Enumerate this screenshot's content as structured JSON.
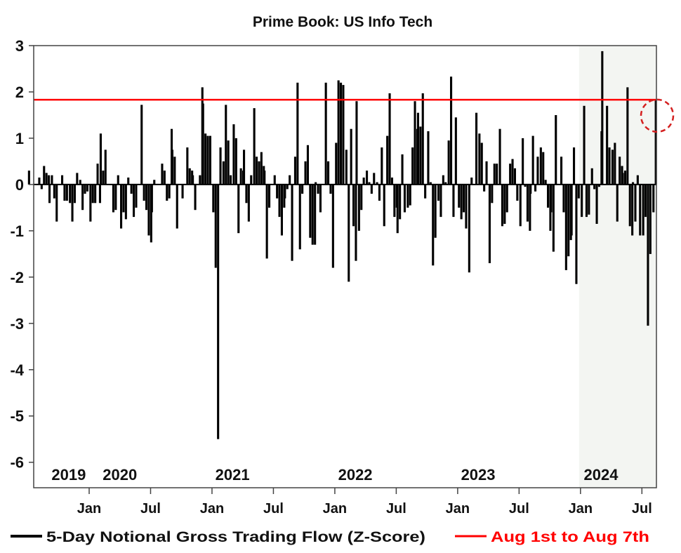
{
  "chart_data": {
    "type": "bar",
    "title": "Prime Book: US Info Tech",
    "xlabel": "",
    "ylabel": "",
    "ylim": [
      -6.55,
      3
    ],
    "yticks": [
      "3",
      "2",
      "1",
      "0",
      "-1",
      "-2",
      "-3",
      "-4",
      "-5",
      "-6"
    ],
    "ytick_values": [
      3,
      2,
      1,
      0,
      -1,
      -2,
      -3,
      -4,
      -5,
      -6
    ],
    "xtick_labels": [
      {
        "date": "2020-01",
        "label": "Jan"
      },
      {
        "date": "2020-07",
        "label": "Jul"
      },
      {
        "date": "2021-01",
        "label": "Jan"
      },
      {
        "date": "2021-07",
        "label": "Jul"
      },
      {
        "date": "2022-01",
        "label": "Jan"
      },
      {
        "date": "2022-07",
        "label": "Jul"
      },
      {
        "date": "2023-01",
        "label": "Jan"
      },
      {
        "date": "2023-07",
        "label": "Jul"
      },
      {
        "date": "2024-01",
        "label": "Jan"
      },
      {
        "date": "2024-07",
        "label": "Jul"
      }
    ],
    "year_labels": [
      {
        "date": "2019-11",
        "label": "2019"
      },
      {
        "date": "2020-04",
        "label": "2020"
      },
      {
        "date": "2021-03",
        "label": "2021"
      },
      {
        "date": "2022-03",
        "label": "2022"
      },
      {
        "date": "2023-03",
        "label": "2023"
      },
      {
        "date": "2024-03",
        "label": "2024"
      }
    ],
    "grid": false,
    "legend_placement": "bottom",
    "shaded_period": {
      "start": "2024-01",
      "end": "2024-08",
      "color": "#f3f5f2"
    },
    "reference_line": {
      "value": 1.83,
      "color": "#ff0000",
      "name": "Aug 1st to Aug 7th"
    },
    "highlight_circle": {
      "date": "2024-08",
      "value": 1.82,
      "color": "#d42020"
    },
    "series": [
      {
        "name": "5-Day Notional Gross Trading Flow (Z-Score)",
        "color": "#000000",
        "weekly_values_by_month": {
          "2019-07": [
            0.3
          ],
          "2019-08": [
            0.15,
            -0.1,
            0.4,
            0.25,
            0.2
          ],
          "2019-09": [
            -0.4,
            0.2,
            -0.3,
            -0.8
          ],
          "2019-10": [
            0,
            0.2,
            -0.35,
            -0.35
          ],
          "2019-11": [
            -0.4,
            -0.8,
            -0.4,
            0.25
          ],
          "2019-12": [
            0.1,
            -0.55,
            -0.2,
            -0.15
          ],
          "2020-01": [
            -0.8,
            -0.4,
            -0.4,
            0.45,
            -0.4
          ],
          "2020-02": [
            1.1,
            0.3,
            0.75
          ],
          "2020-03": [
            0,
            -0.6,
            -0.55,
            0.2
          ],
          "2020-04": [
            -0.95,
            -0.6,
            -0.75,
            0.15
          ],
          "2020-05": [
            -0.2,
            -0.7,
            -0.5
          ],
          "2020-06": [
            1.72,
            -0.35,
            -0.55,
            -1.1,
            -1.25
          ],
          "2020-07": [
            -0.6,
            0.1
          ],
          "2020-08": [
            0.45,
            0.3,
            -0.35,
            -0.3,
            1.2
          ],
          "2020-09": [
            0.75,
            0.6,
            -0.95
          ],
          "2020-10": [
            -0.3,
            0,
            0.8,
            0.35,
            0.3
          ],
          "2020-11": [
            0.2,
            -0.55,
            0,
            0.2,
            2.1
          ],
          "2020-12": [
            1.75,
            1.1,
            1.05,
            1.05
          ],
          "2021-01": [
            -0.6,
            -1.8,
            -5.5,
            0.8
          ],
          "2021-02": [
            0.5,
            1.72,
            0.95,
            0.2
          ],
          "2021-03": [
            1.3,
            1.0,
            -1.05,
            0.35,
            0.3
          ],
          "2021-04": [
            0.75,
            -0.4,
            -0.8,
            0.2
          ],
          "2021-05": [
            1.65,
            0.6,
            0.5,
            0.7,
            0.4
          ],
          "2021-06": [
            0.3,
            -1.6,
            -0.5
          ],
          "2021-07": [
            0.2,
            -0.3,
            -0.7,
            -1.1,
            -0.5
          ],
          "2021-08": [
            -0.3,
            -0.1,
            0.2,
            -1.65
          ],
          "2021-09": [
            0.6,
            2.2,
            -1.4,
            -0.2
          ],
          "2021-10": [
            0.5,
            0.85,
            -1.15,
            -1.3,
            -1.3
          ],
          "2021-11": [
            0.05,
            -0.2,
            -0.6
          ],
          "2021-12": [
            2.2,
            0.5,
            -0.2,
            -1.8
          ],
          "2022-01": [
            0.9,
            2.25,
            2.2,
            2.15
          ],
          "2022-02": [
            0.75,
            -2.1,
            1.2,
            -0.9,
            -1.65
          ],
          "2022-03": [
            1.8,
            -1.0,
            -0.55,
            0.15
          ],
          "2022-04": [
            0.3,
            0.05,
            -0.2,
            0.25
          ],
          "2022-05": [
            0.05,
            -0.35,
            0.8,
            -0.9
          ],
          "2022-06": [
            1.05,
            1.97,
            0.15,
            -0.7,
            -0.5
          ],
          "2022-07": [
            -1.05,
            -0.75,
            0.65,
            -0.6
          ],
          "2022-08": [
            -0.5,
            -0.45,
            0.8,
            1.8,
            1.2
          ],
          "2022-09": [
            1.55,
            1.25,
            1.97,
            -0.3
          ],
          "2022-10": [
            1.15,
            0.05,
            -1.75,
            -1.15
          ],
          "2022-11": [
            -0.35,
            -0.7,
            0.2,
            0.05
          ],
          "2022-12": [
            0.95,
            2.33,
            -0.7,
            1.45
          ],
          "2023-01": [
            -0.5,
            -0.75,
            -0.6,
            -0.95
          ],
          "2023-02": [
            -1.9,
            0.15,
            0,
            1.55
          ],
          "2023-03": [
            1.1,
            0.9,
            -0.15,
            0.5
          ],
          "2023-04": [
            -1.7,
            -0.4,
            0.45,
            0.45
          ],
          "2023-05": [
            1.2,
            -0.9,
            -0.85,
            -0.6
          ],
          "2023-06": [
            0.45,
            0.55,
            0.35,
            -0.35
          ],
          "2023-07": [
            -0.9,
            1.0,
            -0.05,
            -0.8,
            -1.0
          ],
          "2023-08": [
            -0.2,
            1.05,
            -0.15,
            0.6
          ],
          "2023-09": [
            0.8,
            0.7,
            0.1,
            -0.5,
            -1.0
          ],
          "2023-10": [
            -0.6,
            -1.45,
            1.5
          ],
          "2023-11": [
            0.6,
            -0.6,
            -1.85,
            -1.55,
            -1.2
          ],
          "2023-12": [
            -1.1,
            0.8,
            -2.15,
            -0.3
          ],
          "2024-01": [
            -0.7,
            1.7,
            -0.7,
            -0.65
          ],
          "2024-02": [
            0.35,
            -0.1,
            -0.85,
            -0.05,
            1.15
          ],
          "2024-03": [
            2.88,
            0.0,
            1.7,
            0.8
          ],
          "2024-04": [
            0.75,
            0.9,
            -0.8,
            0.6,
            0.4
          ],
          "2024-05": [
            0.25,
            0.3,
            2.1,
            -0.9,
            -1.1
          ],
          "2024-06": [
            0.05,
            -0.8,
            0.2,
            -1.1
          ],
          "2024-07": [
            -1.1,
            -0.7,
            -3.05,
            -1.5
          ],
          "2024-08": [
            -0.6,
            1.82
          ]
        }
      }
    ],
    "legend": [
      {
        "label": "5-Day Notional Gross Trading Flow (Z-Score)",
        "color": "#000000"
      },
      {
        "label": "Aug 1st to Aug 7th",
        "color": "#ff0000"
      }
    ]
  }
}
